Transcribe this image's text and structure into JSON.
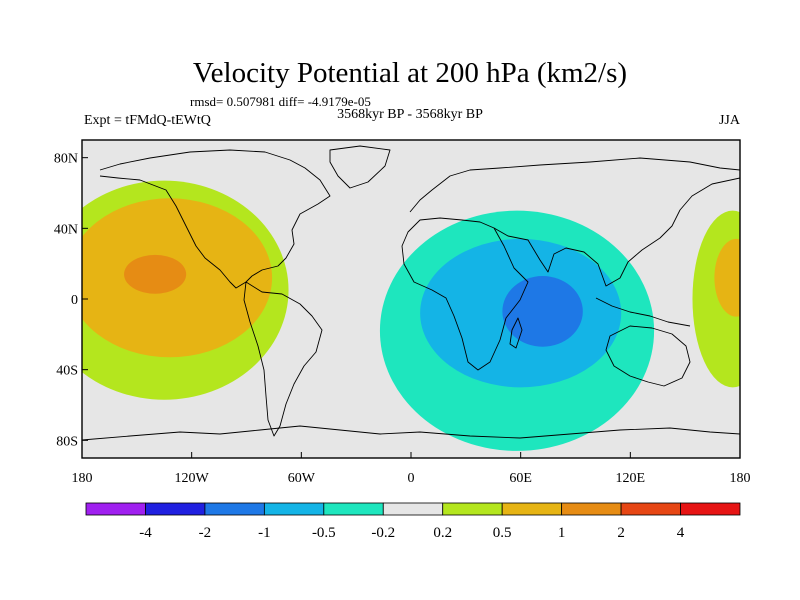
{
  "chart_data": {
    "type": "heatmap",
    "title": "Velocity Potential at 200 hPa (km2/s)",
    "stats_line": "rmsd= 0.507981 diff= -4.9179e-05",
    "experiment": "Expt = tFMdQ-tEWtQ",
    "period": "3568kyr BP - 3568kyr BP",
    "season": "JJA",
    "x_ticks": [
      "180",
      "120W",
      "60W",
      "0",
      "60E",
      "120E",
      "180"
    ],
    "y_ticks": [
      "80N",
      "40N",
      "0",
      "40S",
      "80S"
    ],
    "x_range": [
      -180,
      180
    ],
    "y_range": [
      -90,
      90
    ],
    "colorbar": {
      "labels": [
        "-4",
        "-2",
        "-1",
        "-0.5",
        "-0.2",
        "0.2",
        "0.5",
        "1",
        "2",
        "4"
      ],
      "colors": [
        "#a020f0",
        "#2020e0",
        "#1e78e6",
        "#14b4e6",
        "#1ee6be",
        "#e6e6e6",
        "#b4e61e",
        "#e6b414",
        "#e68c14",
        "#e64614",
        "#e61414"
      ]
    },
    "regions": [
      {
        "name": "pacific-positive-0.2",
        "level": 0.2,
        "color": "#b4e61e",
        "lon": -135,
        "lat": 5,
        "rlon": 68,
        "rlat": 62
      },
      {
        "name": "pacific-positive-0.5",
        "level": 0.5,
        "color": "#e6b414",
        "lon": -132,
        "lat": 12,
        "rlon": 56,
        "rlat": 45
      },
      {
        "name": "pacific-positive-1",
        "level": 1,
        "color": "#e68c14",
        "lon": -140,
        "lat": 14,
        "rlon": 17,
        "rlat": 11
      },
      {
        "name": "indian-negative-0.2",
        "level": -0.2,
        "color": "#1ee6be",
        "lon": 58,
        "lat": -18,
        "rlon": 75,
        "rlat": 68
      },
      {
        "name": "indian-negative-0.5",
        "level": -0.5,
        "color": "#14b4e6",
        "lon": 60,
        "lat": -8,
        "rlon": 55,
        "rlat": 42
      },
      {
        "name": "indian-negative-1",
        "level": -1,
        "color": "#1e78e6",
        "lon": 72,
        "lat": -7,
        "rlon": 22,
        "rlat": 20
      },
      {
        "name": "dateline-east-positive-0.2",
        "level": 0.2,
        "color": "#b4e61e",
        "lon": 176,
        "lat": 0,
        "rlon": 22,
        "rlat": 50
      },
      {
        "name": "dateline-east-positive-0.5",
        "level": 0.5,
        "color": "#e6b414",
        "lon": 178,
        "lat": 12,
        "rlon": 12,
        "rlat": 22
      }
    ]
  }
}
